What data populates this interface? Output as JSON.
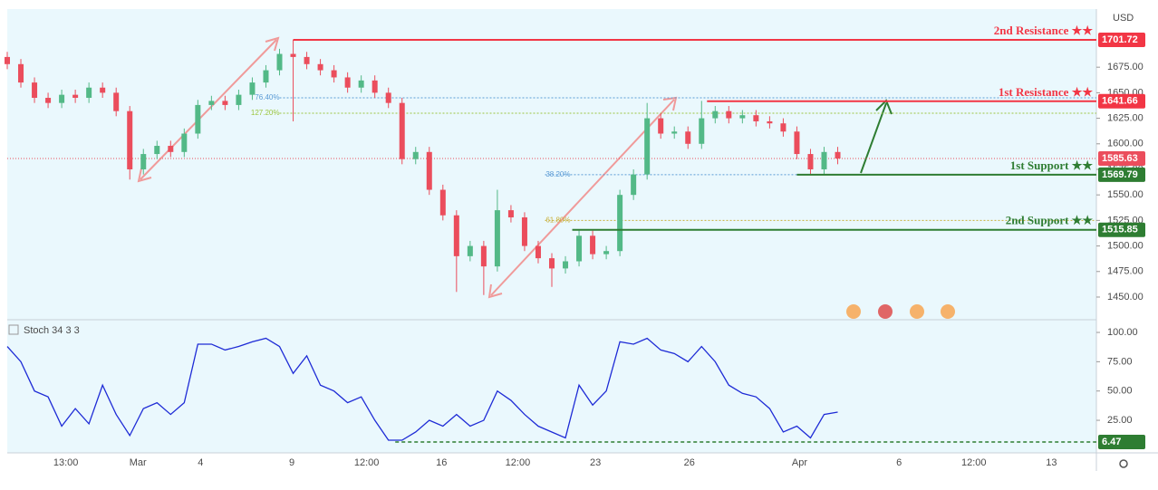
{
  "chart_data": [
    {
      "type": "candlestick",
      "currency": "USD",
      "up_color": "#53b987",
      "down_color": "#eb4d5c",
      "xlim": [
        0,
        80
      ],
      "ylim": [
        1428.7,
        1731.9
      ],
      "xticks": [
        {
          "value": 4.3,
          "label": "13:00"
        },
        {
          "value": 9.6,
          "label": "Mar"
        },
        {
          "value": 14.2,
          "label": "4"
        },
        {
          "value": 20.9,
          "label": "9"
        },
        {
          "value": 26.4,
          "label": "12:00"
        },
        {
          "value": 31.9,
          "label": "16"
        },
        {
          "value": 37.5,
          "label": "12:00"
        },
        {
          "value": 43.2,
          "label": "23"
        },
        {
          "value": 50.1,
          "label": "26"
        },
        {
          "value": 58.2,
          "label": "Apr"
        },
        {
          "value": 65.5,
          "label": "6"
        },
        {
          "value": 71.0,
          "label": "12:00"
        },
        {
          "value": 76.7,
          "label": "13"
        }
      ],
      "yticks": [
        {
          "value": 1450,
          "label": "1450.00"
        },
        {
          "value": 1475,
          "label": "1475.00"
        },
        {
          "value": 1500,
          "label": "1500.00"
        },
        {
          "value": 1525,
          "label": "1525.00"
        },
        {
          "value": 1550,
          "label": "1550.00"
        },
        {
          "value": 1575,
          "label": "1575.00"
        },
        {
          "value": 1600,
          "label": "1600.00"
        },
        {
          "value": 1625,
          "label": "1625.00"
        },
        {
          "value": 1650,
          "label": "1650.00"
        },
        {
          "value": 1675,
          "label": "1675.00"
        }
      ],
      "open": [
        1685,
        1678,
        1660,
        1645,
        1640,
        1648,
        1645,
        1655,
        1650,
        1632,
        1575,
        1590,
        1598,
        1592,
        1610,
        1638,
        1642,
        1638,
        1648,
        1660,
        1672,
        1688,
        1685,
        1678,
        1672,
        1665,
        1655,
        1662,
        1650,
        1640,
        1585,
        1592,
        1555,
        1530,
        1490,
        1500,
        1480,
        1535,
        1528,
        1500,
        1488,
        1478,
        1485,
        1510,
        1492,
        1495,
        1550,
        1570,
        1625,
        1610,
        1612,
        1600,
        1625,
        1632,
        1625,
        1628,
        1622,
        1620,
        1612,
        1590,
        1575,
        1592
      ],
      "high": [
        1690,
        1683,
        1665,
        1650,
        1653,
        1653,
        1660,
        1660,
        1655,
        1637,
        1595,
        1603,
        1603,
        1615,
        1643,
        1647,
        1647,
        1653,
        1665,
        1677,
        1693,
        1701.72,
        1690,
        1683,
        1677,
        1670,
        1667,
        1667,
        1655,
        1645,
        1597,
        1597,
        1560,
        1535,
        1505,
        1505,
        1555,
        1540,
        1533,
        1505,
        1493,
        1490,
        1515,
        1515,
        1500,
        1555,
        1575,
        1640,
        1630,
        1617,
        1617,
        1642,
        1637,
        1637,
        1633,
        1633,
        1627,
        1625,
        1617,
        1595,
        1597,
        1597
      ],
      "low": [
        1673,
        1655,
        1640,
        1635,
        1635,
        1640,
        1640,
        1645,
        1627,
        1565,
        1570,
        1585,
        1587,
        1587,
        1605,
        1633,
        1633,
        1633,
        1643,
        1655,
        1667,
        1622,
        1673,
        1667,
        1660,
        1650,
        1650,
        1645,
        1635,
        1580,
        1580,
        1550,
        1525,
        1455,
        1485,
        1452,
        1475,
        1523,
        1495,
        1483,
        1460,
        1473,
        1480,
        1487,
        1487,
        1490,
        1545,
        1565,
        1605,
        1605,
        1595,
        1595,
        1620,
        1620,
        1620,
        1617,
        1615,
        1607,
        1585,
        1570,
        1570,
        1580
      ],
      "close": [
        1678,
        1660,
        1645,
        1640,
        1648,
        1645,
        1655,
        1650,
        1632,
        1575,
        1590,
        1598,
        1592,
        1610,
        1638,
        1642,
        1638,
        1648,
        1660,
        1672,
        1688,
        1685,
        1678,
        1672,
        1665,
        1655,
        1662,
        1650,
        1640,
        1585,
        1592,
        1555,
        1530,
        1490,
        1500,
        1480,
        1535,
        1528,
        1500,
        1488,
        1478,
        1485,
        1510,
        1492,
        1495,
        1550,
        1570,
        1625,
        1610,
        1612,
        1600,
        1625,
        1632,
        1625,
        1628,
        1622,
        1620,
        1612,
        1590,
        1575,
        1592,
        1585.63
      ],
      "last": 1585.63,
      "last_color": "#eb4d5c",
      "levels": [
        {
          "name": "2nd Resistance ★★",
          "value": 1701.72,
          "from": 21,
          "color": "#f23645"
        },
        {
          "name": "1st Resistance ★★",
          "value": 1641.66,
          "from": 51.4,
          "color": "#f23645"
        },
        {
          "name": "1st Support ★★",
          "value": 1569.79,
          "from": 58,
          "color": "#2e7d32"
        },
        {
          "name": "2nd Support ★★",
          "value": 1515.85,
          "from": 41.5,
          "color": "#2e7d32"
        }
      ],
      "fib": [
        {
          "label": "76.40%",
          "value": 1645,
          "from": 20,
          "color": "#5b9bd5"
        },
        {
          "label": "127.20%",
          "value": 1630,
          "from": 20,
          "color": "#9bc53d"
        },
        {
          "label": "38.20%",
          "value": 1569.79,
          "from": 39.5,
          "color": "#5b9bd5"
        },
        {
          "label": "61.80%",
          "value": 1525,
          "from": 39.5,
          "color": "#c9b03a"
        }
      ]
    },
    {
      "type": "line",
      "title": "Stoch 34 3 3",
      "color": "#1e2bd6",
      "xlim": [
        0,
        80
      ],
      "ylim": [
        -2.8,
        109.3
      ],
      "yticks": [
        {
          "value": 25,
          "label": "25.00"
        },
        {
          "value": 50,
          "label": "50.00"
        },
        {
          "value": 75,
          "label": "75.00"
        },
        {
          "value": 100,
          "label": "100.00"
        }
      ],
      "values": [
        88,
        75,
        50,
        45,
        20,
        35,
        22,
        55,
        30,
        12,
        35,
        40,
        30,
        40,
        90,
        90,
        85,
        88,
        92,
        95,
        88,
        65,
        80,
        55,
        50,
        40,
        45,
        25,
        8,
        8,
        15,
        25,
        20,
        30,
        20,
        25,
        50,
        42,
        30,
        20,
        15,
        10,
        55,
        38,
        50,
        92,
        90,
        95,
        85,
        82,
        75,
        88,
        75,
        55,
        48,
        45,
        35,
        15,
        20,
        10,
        30,
        32
      ],
      "level": 6.47,
      "level_from": 28.5,
      "level_color": "#2e7d32"
    }
  ]
}
